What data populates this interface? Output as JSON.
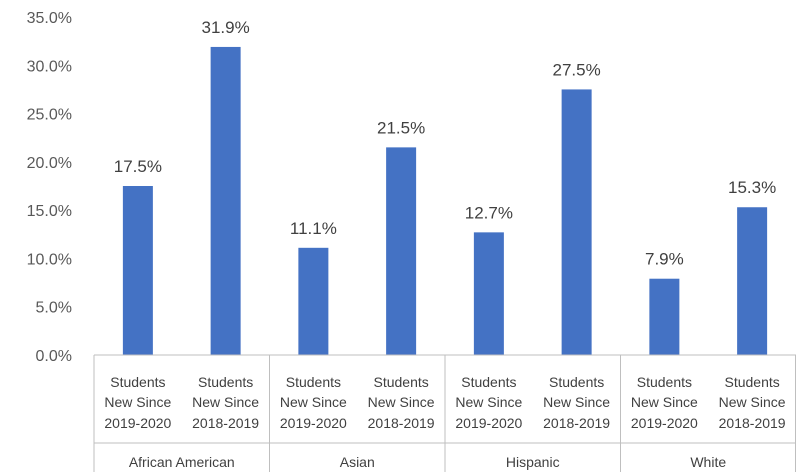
{
  "chart_data": {
    "type": "bar",
    "groups": [
      "African American",
      "Asian",
      "Hispanic",
      "White"
    ],
    "categories_per_group": [
      [
        "Students",
        "New Since",
        "2019-2020"
      ],
      [
        "Students",
        "New Since",
        "2018-2019"
      ]
    ],
    "values": [
      17.5,
      31.9,
      11.1,
      21.5,
      12.7,
      27.5,
      7.9,
      15.3
    ],
    "data_labels": [
      "17.5%",
      "31.9%",
      "11.1%",
      "21.5%",
      "12.7%",
      "27.5%",
      "7.9%",
      "15.3%"
    ],
    "y_ticks": [
      "0.0%",
      "5.0%",
      "10.0%",
      "15.0%",
      "20.0%",
      "25.0%",
      "30.0%",
      "35.0%"
    ],
    "ylim": [
      0,
      35
    ],
    "grid": false,
    "bar_color": "#4472C4",
    "axis_color": "#BFBFBF",
    "text_color": "#404040",
    "title": "",
    "xlabel": "",
    "ylabel": ""
  }
}
